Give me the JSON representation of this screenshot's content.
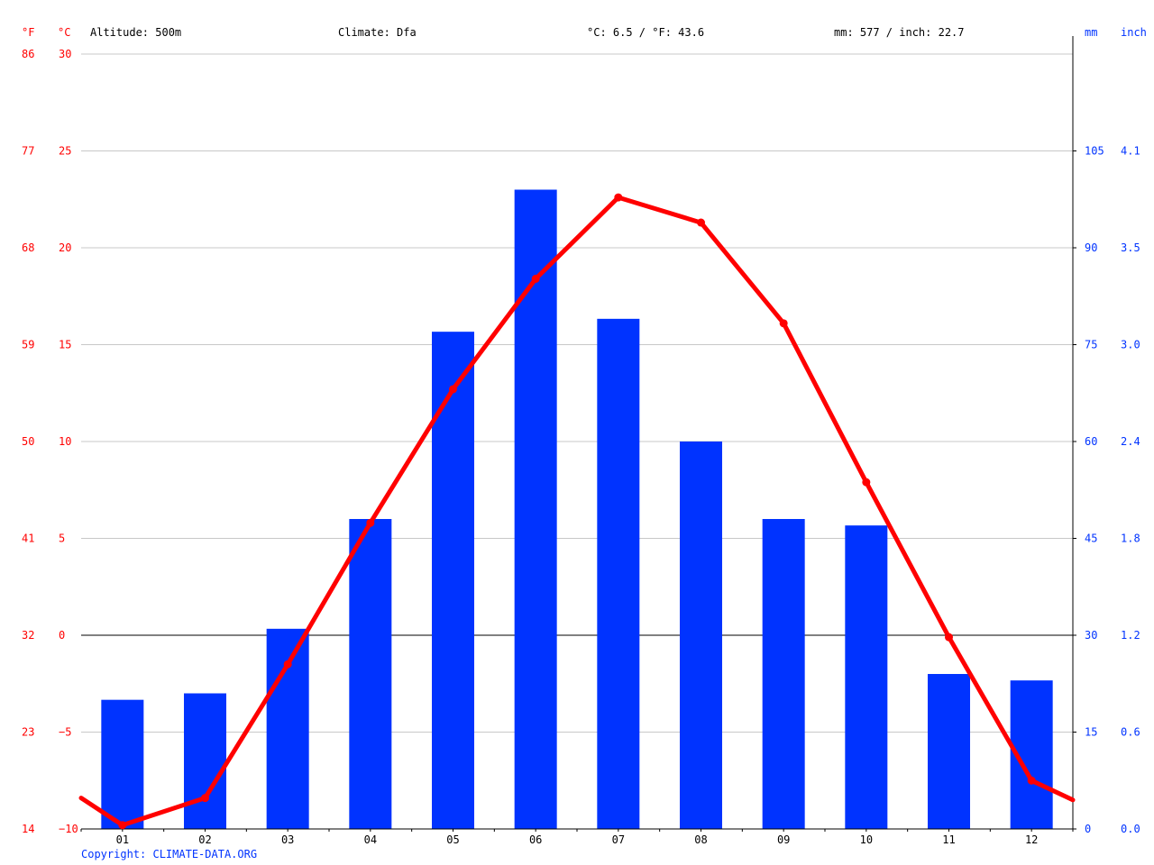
{
  "header": {
    "unit_f": "°F",
    "unit_c": "°C",
    "altitude": "Altitude: 500m",
    "climate": "Climate: Dfa",
    "temp_avg": "°C: 6.5 / °F: 43.6",
    "precip_total": "mm: 577 / inch: 22.7",
    "unit_mm": "mm",
    "unit_inch": "inch"
  },
  "copyright": "Copyright: CLIMATE-DATA.ORG",
  "colors": {
    "temperature": "#ff0000",
    "precipitation": "#0033ff",
    "grid": "#c8c8c8",
    "zero_line": "#000000"
  },
  "chart_data": {
    "type": "bar",
    "categories": [
      "01",
      "02",
      "03",
      "04",
      "05",
      "06",
      "07",
      "08",
      "09",
      "10",
      "11",
      "12"
    ],
    "series": [
      {
        "kind": "bar",
        "axis": "right",
        "unit": "mm",
        "values": [
          20,
          21,
          31,
          48,
          77,
          99,
          79,
          60,
          48,
          47,
          24,
          23
        ]
      },
      {
        "kind": "line",
        "axis": "left",
        "unit": "°C",
        "values": [
          -9.8,
          -8.4,
          -1.5,
          5.8,
          12.7,
          18.4,
          22.6,
          21.3,
          16.1,
          7.9,
          -0.1,
          -7.5
        ]
      }
    ],
    "line_edges": {
      "left": -8.4,
      "right": -8.5
    },
    "y_left_c": {
      "lim": [
        -10,
        30
      ],
      "ticks": [
        "30",
        "25",
        "20",
        "15",
        "10",
        "5",
        "0",
        "−5",
        "−10"
      ]
    },
    "y_left_f": {
      "ticks": [
        "86",
        "77",
        "68",
        "59",
        "50",
        "41",
        "32",
        "23",
        "14"
      ]
    },
    "y_right_mm": {
      "lim": [
        0,
        120
      ],
      "ticks": [
        "105",
        "90",
        "75",
        "60",
        "45",
        "30",
        "15",
        "0"
      ]
    },
    "y_right_inch": {
      "ticks": [
        "4.1",
        "3.5",
        "3.0",
        "2.4",
        "1.8",
        "1.2",
        "0.6",
        "0.0"
      ]
    },
    "grid": true
  }
}
